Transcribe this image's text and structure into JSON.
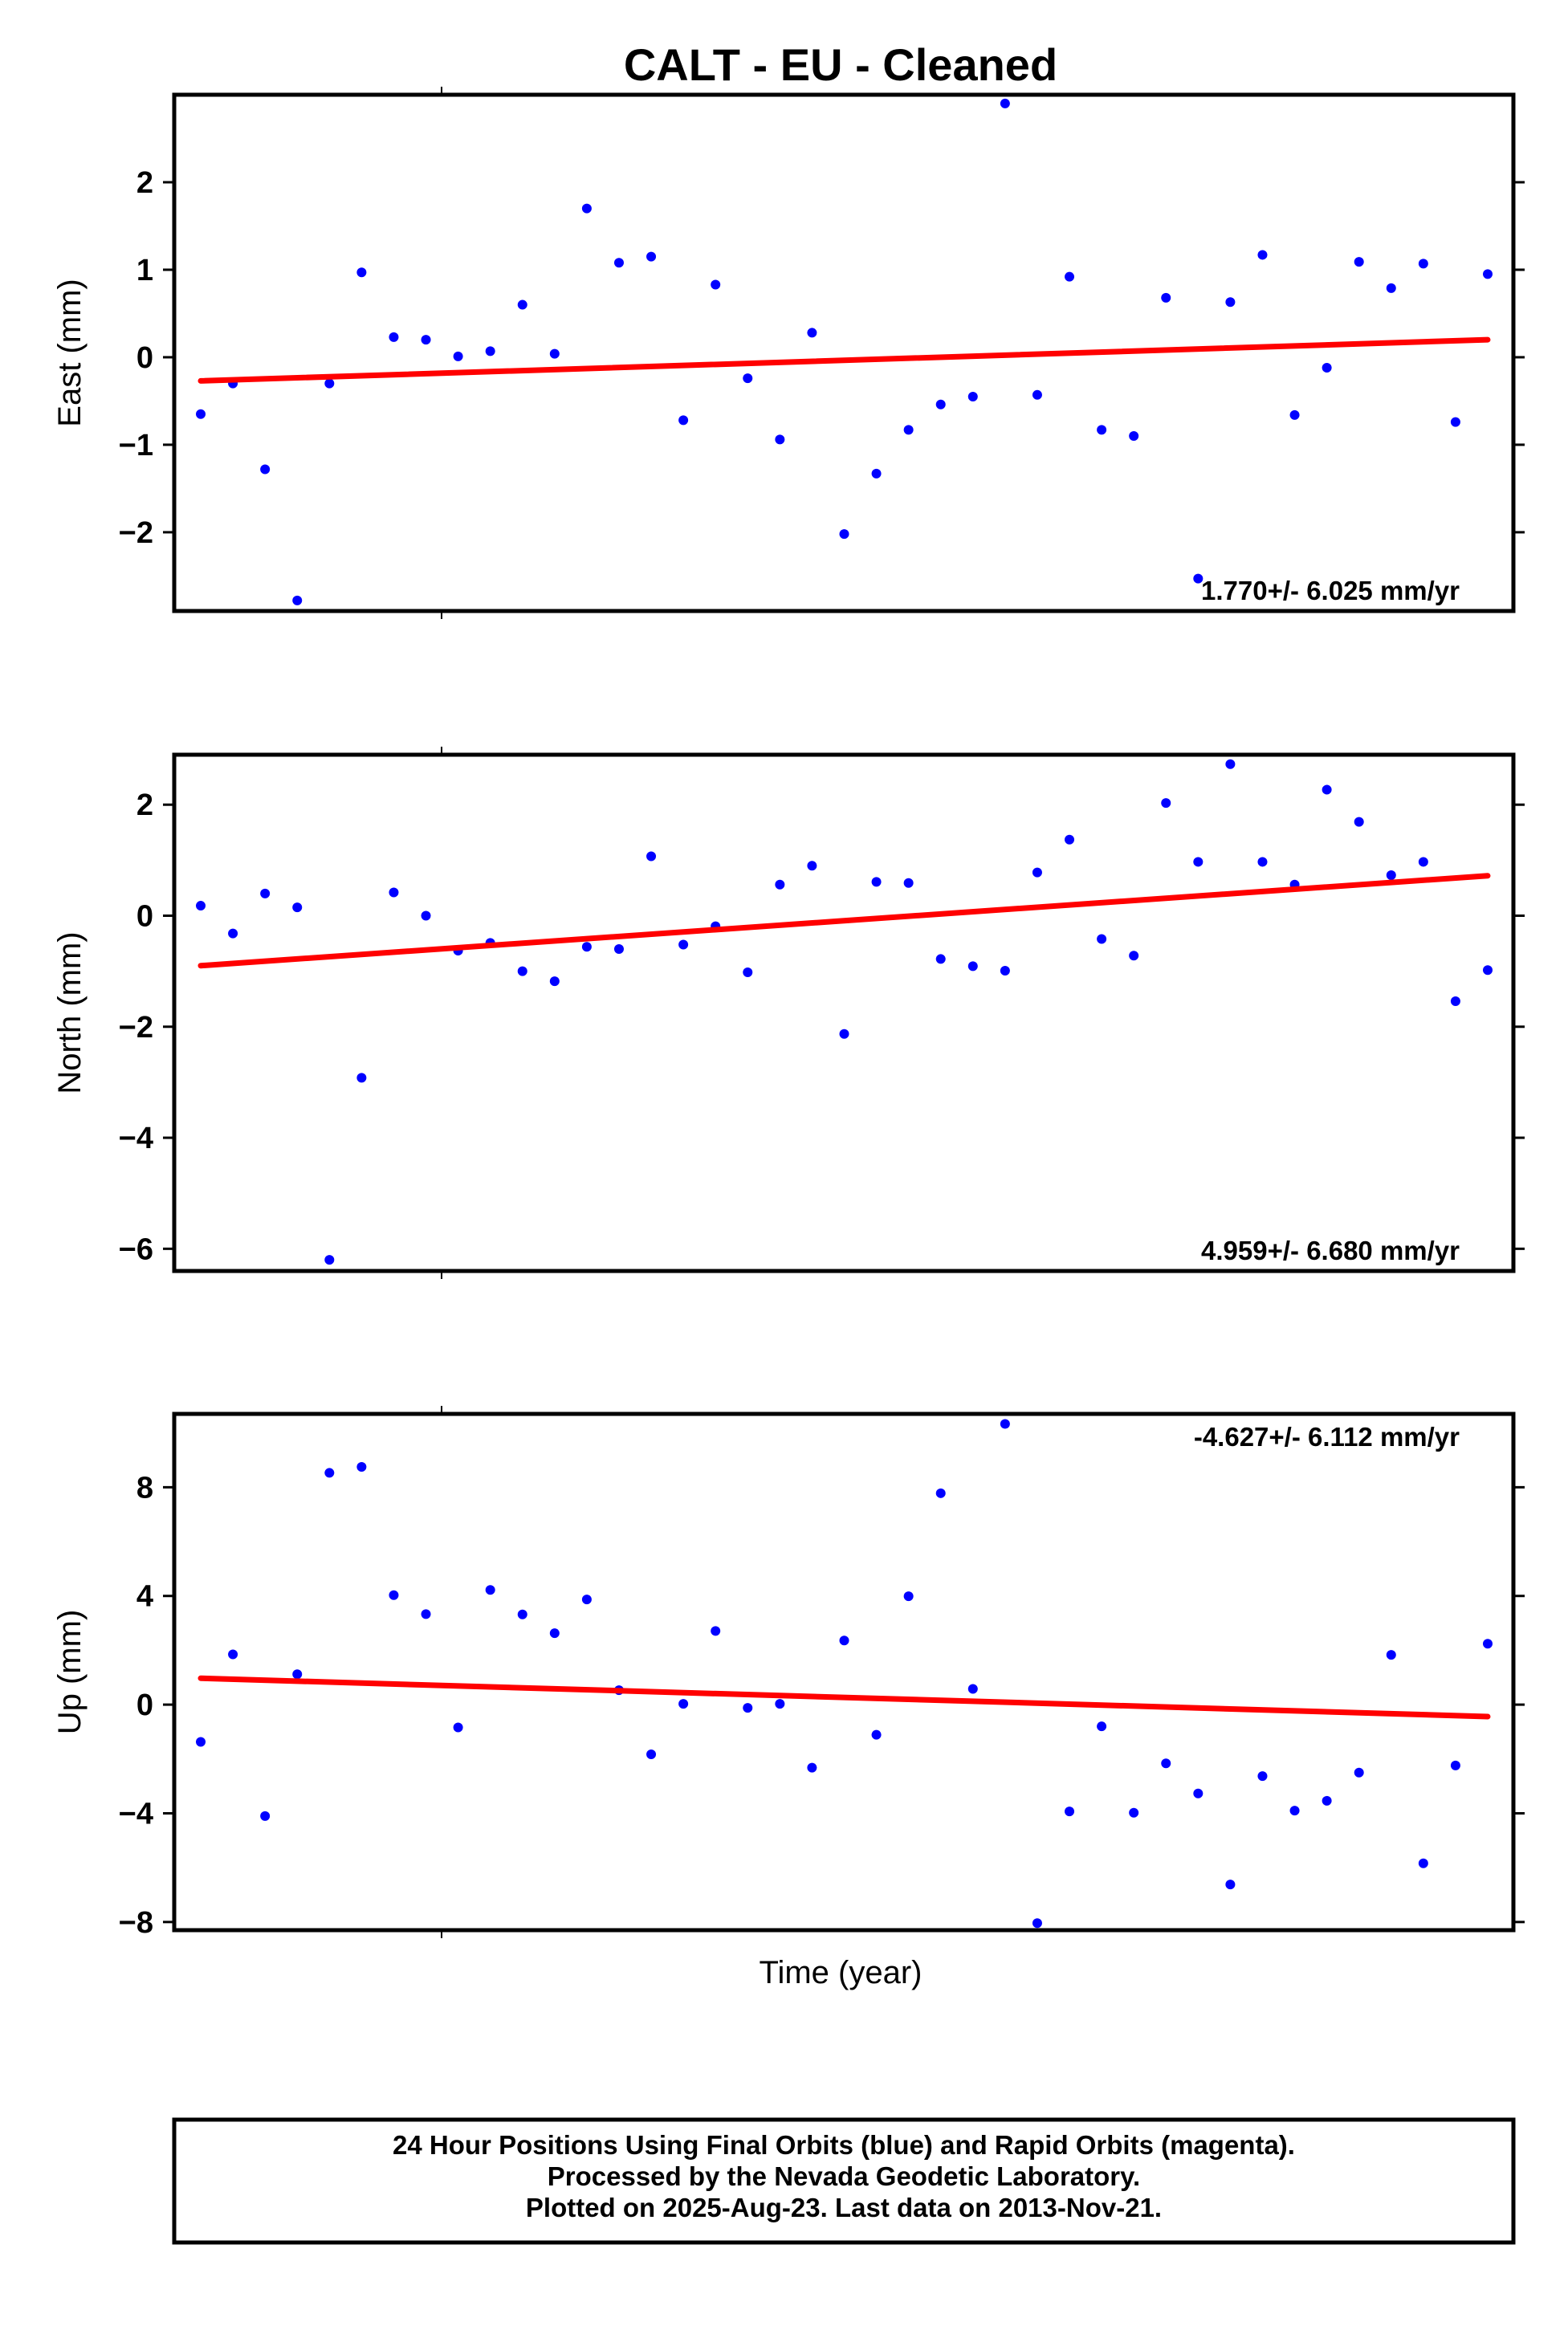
{
  "title": "CALT  - EU - Cleaned",
  "xlabel": "Time (year)",
  "footer": {
    "line1": "24 Hour Positions Using Final Orbits (blue) and Rapid Orbits (magenta).",
    "line2": "Processed by the Nevada Geodetic Laboratory.",
    "line3": "Plotted on 2025-Aug-23. Last data on 2013-Nov-21."
  },
  "colors": {
    "points": "#0000ff",
    "trend": "#ff0000",
    "frame": "#000000"
  },
  "chart_data": [
    {
      "type": "scatter",
      "ylabel": "East (mm)",
      "ylim": [
        -2.9,
        3.0
      ],
      "yticks": [
        -2,
        -1,
        0,
        1,
        2
      ],
      "ytick_labels": [
        "−2",
        "−1",
        "0",
        "1",
        "2"
      ],
      "rate_text": "1.770+/- 6.025 mm/yr",
      "rate_position": "bottom-right",
      "series": [
        {
          "values": [
            -0.65,
            -0.3,
            -1.28,
            -2.78,
            -0.3,
            0.97,
            0.23,
            0.2,
            0.01,
            0.07,
            0.6,
            0.04,
            1.7,
            1.08,
            1.15,
            -0.72,
            0.83,
            -0.24,
            -0.94,
            0.28,
            -2.02,
            -1.33,
            -0.83,
            -0.54,
            -0.45,
            2.9,
            -0.43,
            0.92,
            -0.83,
            -0.9,
            0.68,
            -2.53,
            0.63,
            1.17,
            -0.66,
            -0.12,
            1.09,
            0.79,
            1.07,
            -0.74,
            0.95
          ]
        }
      ],
      "trend": [
        -0.27,
        0.2
      ]
    },
    {
      "type": "scatter",
      "ylabel": "North (mm)",
      "ylim": [
        -6.4,
        2.9
      ],
      "yticks": [
        -6,
        -4,
        -2,
        0,
        2
      ],
      "ytick_labels": [
        "−6",
        "−4",
        "−2",
        "0",
        "2"
      ],
      "rate_text": "4.959+/- 6.680 mm/yr",
      "rate_position": "bottom-right",
      "series": [
        {
          "values": [
            0.18,
            -0.32,
            0.4,
            0.15,
            -6.2,
            -2.92,
            0.42,
            0.0,
            -0.63,
            -0.49,
            -1.0,
            -1.18,
            -0.56,
            -0.6,
            1.07,
            -0.52,
            -0.19,
            -1.02,
            0.56,
            0.9,
            -2.13,
            0.61,
            0.59,
            -0.78,
            -0.91,
            -0.99,
            0.78,
            1.37,
            -0.42,
            -0.72,
            2.03,
            0.97,
            2.73,
            0.97,
            0.56,
            2.27,
            1.69,
            0.73,
            0.97,
            -1.54,
            -0.98
          ]
        }
      ],
      "trend": [
        -0.9,
        0.72
      ]
    },
    {
      "type": "scatter",
      "ylabel": "Up (mm)",
      "ylim": [
        -8.3,
        10.7
      ],
      "yticks": [
        -8,
        -4,
        0,
        4,
        8
      ],
      "ytick_labels": [
        "−8",
        "−4",
        "0",
        "4",
        "8"
      ],
      "rate_text": "-4.627+/- 6.112 mm/yr",
      "rate_position": "top-right",
      "series": [
        {
          "values": [
            -1.37,
            1.85,
            -4.1,
            1.12,
            8.53,
            8.75,
            4.03,
            3.33,
            -0.84,
            4.22,
            3.32,
            2.63,
            3.87,
            0.53,
            -1.83,
            0.03,
            2.71,
            -0.12,
            0.03,
            -2.32,
            2.36,
            -1.11,
            3.99,
            7.78,
            0.58,
            10.33,
            -8.04,
            -3.93,
            -0.8,
            -3.98,
            -2.16,
            -3.27,
            -6.62,
            -2.63,
            -3.9,
            -3.54,
            -2.5,
            1.83,
            -5.84,
            -2.24,
            2.24
          ]
        }
      ],
      "trend": [
        0.97,
        -0.44
      ]
    }
  ]
}
